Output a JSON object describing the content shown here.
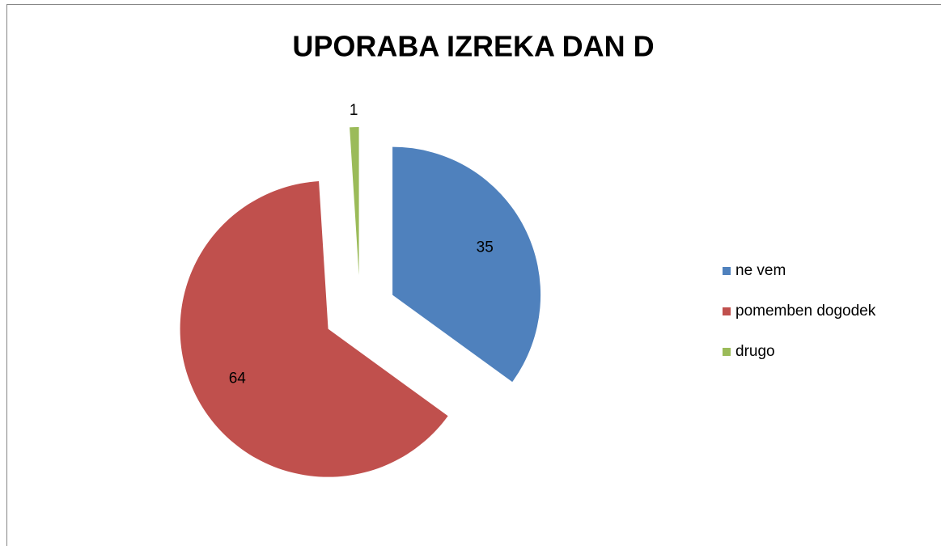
{
  "chart_data": {
    "type": "pie",
    "title": "UPORABA IZREKA DAN D",
    "categories": [
      "ne vem",
      "pomemben dogodek",
      "drugo"
    ],
    "values": [
      35,
      64,
      1
    ],
    "colors": [
      "#4f81bd",
      "#c0504d",
      "#9bbb59"
    ],
    "legend": "right",
    "exploded": true
  }
}
